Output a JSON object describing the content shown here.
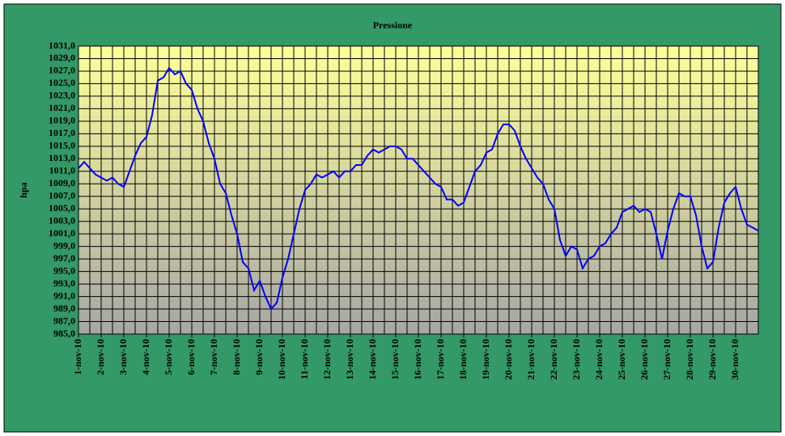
{
  "chart_data": {
    "type": "line",
    "title": "Pressione",
    "y_label": "hpa",
    "categories": [
      "1-nov-10",
      null,
      null,
      null,
      "2-nov-10",
      null,
      null,
      null,
      "3-nov-10",
      null,
      null,
      null,
      "4-nov-10",
      null,
      null,
      null,
      "5-nov-10",
      null,
      null,
      null,
      "6-nov-10",
      null,
      null,
      null,
      "7-nov-10",
      null,
      null,
      null,
      "8-nov-10",
      null,
      null,
      null,
      "9-nov-10",
      null,
      null,
      null,
      "10-nov-10",
      null,
      null,
      null,
      "11-nov-10",
      null,
      null,
      null,
      "12-nov-10",
      null,
      null,
      null,
      "13-nov-10",
      null,
      null,
      null,
      "14-nov-10",
      null,
      null,
      null,
      "15-nov-10",
      null,
      null,
      null,
      "16-nov-10",
      null,
      null,
      null,
      "17-nov-10",
      null,
      null,
      null,
      "18-nov-10",
      null,
      null,
      null,
      "19-nov-10",
      null,
      null,
      null,
      "20-nov-10",
      null,
      null,
      null,
      "21-nov-10",
      null,
      null,
      null,
      "22-nov-10",
      null,
      null,
      null,
      "23-nov-10",
      null,
      null,
      null,
      "24-nov-10",
      null,
      null,
      null,
      "25-nov-10",
      null,
      null,
      null,
      "26-nov-10",
      null,
      null,
      null,
      "27-nov-10",
      null,
      null,
      null,
      "28-nov-10",
      null,
      null,
      null,
      "29-nov-10",
      null,
      null,
      null,
      "30-nov-10",
      null,
      null,
      null,
      null
    ],
    "series": [
      {
        "name": "Pressione",
        "color": "#0000ff",
        "values": [
          1011.5,
          1012.5,
          1011.5,
          1010.5,
          1010,
          1009.5,
          1010,
          1009,
          1008.5,
          1011,
          1013.5,
          1015.5,
          1016.5,
          1020,
          1025.5,
          1026,
          1027.5,
          1026.5,
          1027,
          1025,
          1024,
          1021,
          1019,
          1015.5,
          1013,
          1009,
          1007.5,
          1004,
          1001,
          996.5,
          995.5,
          992,
          993.5,
          991,
          989,
          990,
          994,
          997,
          1001,
          1005,
          1008,
          1009,
          1010.5,
          1010,
          1010.5,
          1011,
          1010,
          1011,
          1011,
          1012,
          1012,
          1013.5,
          1014.5,
          1014,
          1014.5,
          1015,
          1015,
          1014.5,
          1013,
          1013,
          1012,
          1011,
          1010,
          1009,
          1008.5,
          1006.5,
          1006.5,
          1005.5,
          1006,
          1008.5,
          1011,
          1012,
          1014,
          1014.5,
          1017,
          1018.5,
          1018.5,
          1017.5,
          1015,
          1013,
          1011.5,
          1010,
          1009,
          1006.5,
          1005,
          1000,
          997.5,
          999,
          998.5,
          995.5,
          997,
          997.5,
          999,
          999.5,
          1001,
          1002,
          1004.5,
          1005,
          1005.5,
          1004.5,
          1005,
          1004.5,
          1001,
          997,
          1001.5,
          1005,
          1007.5,
          1007,
          1007,
          1004,
          999,
          995.5,
          996.5,
          1002,
          1006,
          1007.5,
          1008.5,
          1005,
          1002.5,
          1002,
          1001.5
        ]
      }
    ],
    "ylim": [
      985,
      1031
    ],
    "yticks": [
      {
        "value": 985,
        "label": "985,0"
      },
      {
        "value": 987,
        "label": "987,0"
      },
      {
        "value": 989,
        "label": "989,0"
      },
      {
        "value": 991,
        "label": "991,0"
      },
      {
        "value": 993,
        "label": "993,0"
      },
      {
        "value": 995,
        "label": "995,0"
      },
      {
        "value": 997,
        "label": "997,0"
      },
      {
        "value": 999,
        "label": "999,0"
      },
      {
        "value": 1001,
        "label": "1001,0"
      },
      {
        "value": 1003,
        "label": "1003,0"
      },
      {
        "value": 1005,
        "label": "1005,0"
      },
      {
        "value": 1007,
        "label": "1007,0"
      },
      {
        "value": 1009,
        "label": "1009,0"
      },
      {
        "value": 1011,
        "label": "1011,0"
      },
      {
        "value": 1013,
        "label": "1013,0"
      },
      {
        "value": 1015,
        "label": "1015,0"
      },
      {
        "value": 1017,
        "label": "1017,0"
      },
      {
        "value": 1019,
        "label": "1019,0"
      },
      {
        "value": 1021,
        "label": "1021,0"
      },
      {
        "value": 1023,
        "label": "1023,0"
      },
      {
        "value": 1025,
        "label": "1025,0"
      },
      {
        "value": 1027,
        "label": "1027,0"
      },
      {
        "value": 1029,
        "label": "1029,0"
      },
      {
        "value": 1031,
        "label": "1031,0"
      }
    ],
    "grid": true
  }
}
